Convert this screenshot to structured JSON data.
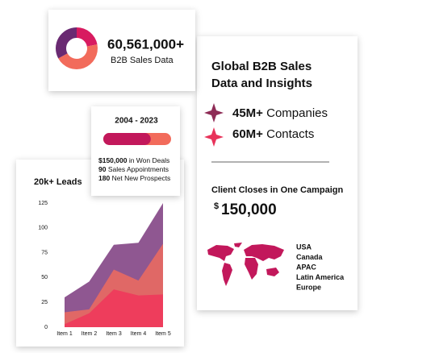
{
  "donut_card": {
    "type": "pie",
    "segments": [
      {
        "color": "#d81b60",
        "value": 22
      },
      {
        "color": "#f26b5b",
        "value": 45
      },
      {
        "color": "#6a2a72",
        "value": 33
      }
    ],
    "stat": "60,561,000+",
    "caption": "B2B Sales Data"
  },
  "period_card": {
    "title": "2004 - 2023",
    "progress": {
      "value": 70,
      "colors": [
        "#c2185b",
        "#f26b5b"
      ]
    },
    "lines": [
      {
        "bold": "$150,000",
        "text": "in Won Deals"
      },
      {
        "bold": "90",
        "text": "Sales Appointments"
      },
      {
        "bold": "180",
        "text": "Net New Prospects"
      }
    ]
  },
  "chart_data": {
    "type": "area",
    "title": "20k+ Leads",
    "categories": [
      "Item 1",
      "Item 2",
      "Item 3",
      "Item 4",
      "Item 5"
    ],
    "series": [
      {
        "color": "#7b3a7e",
        "values": [
          30,
          46,
          83,
          85,
          125
        ]
      },
      {
        "color": "#ef6b5e",
        "values": [
          15,
          18,
          58,
          47,
          84
        ]
      },
      {
        "color": "#f0365a",
        "values": [
          3,
          14,
          38,
          32,
          33
        ]
      }
    ],
    "ylim": [
      0,
      125
    ],
    "yticks": [
      0,
      25,
      50,
      75,
      100,
      125
    ]
  },
  "insights_card": {
    "title_lines": [
      "Global B2B Sales",
      "Data and Insights"
    ],
    "stats": [
      {
        "bold": "45M+",
        "text": "Companies"
      },
      {
        "bold": "60M+",
        "text": "Contacts"
      }
    ],
    "closes_label": "Client Closes in One Campaign",
    "currency": "$",
    "amount": "150,000",
    "regions": [
      "USA",
      "Canada",
      "APAC",
      "Latin America",
      "Europe"
    ]
  }
}
